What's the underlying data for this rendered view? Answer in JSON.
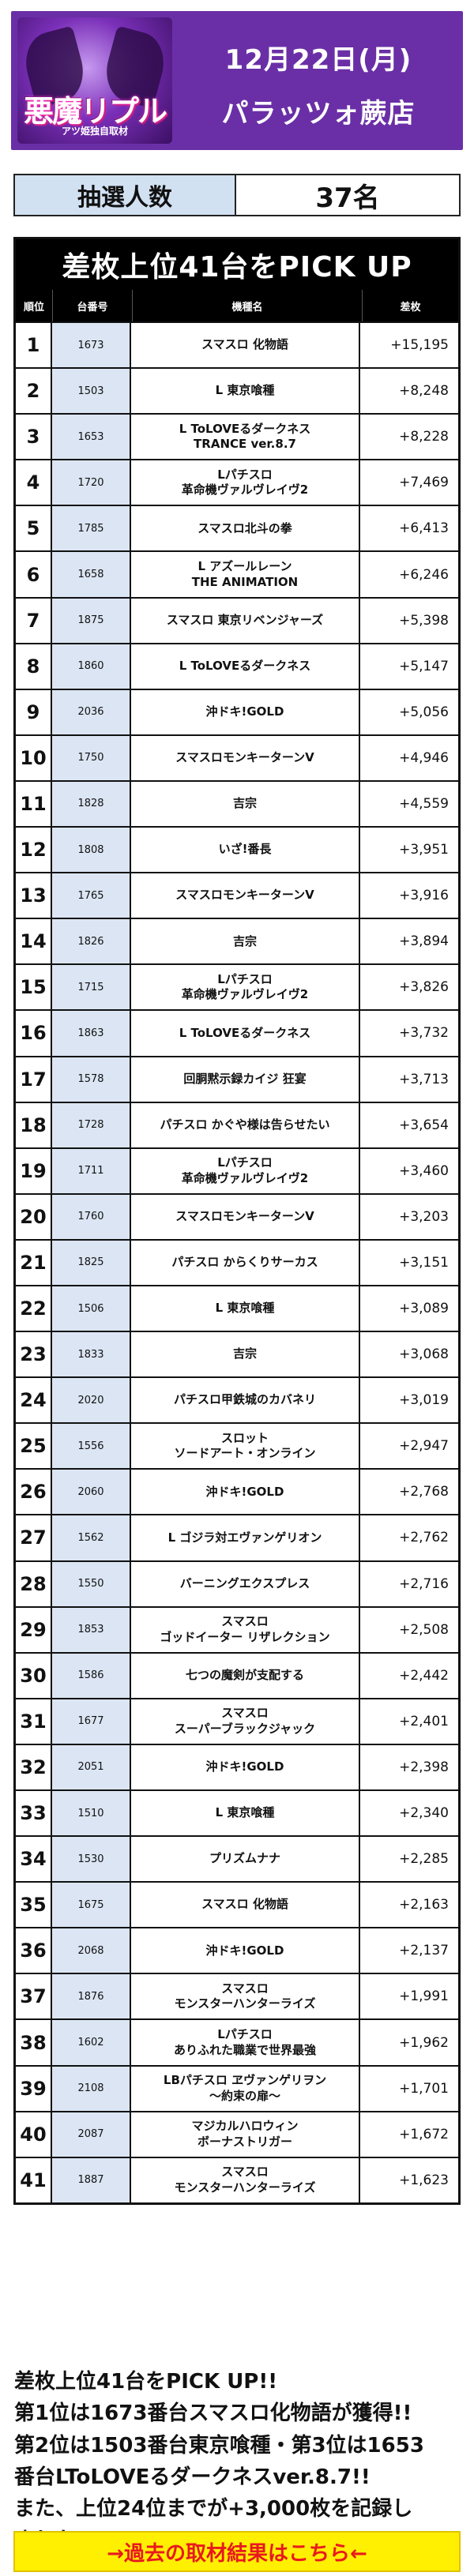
{
  "header": {
    "logo_text": "悪魔リプル",
    "logo_sub": "アツ姫独自取材",
    "date": "12月22日(月)",
    "store": "パラッツォ蕨店"
  },
  "lottery": {
    "label": "抽選人数",
    "value": "37名"
  },
  "table": {
    "title": "差枚上位41台をPICK UP",
    "columns": [
      "順位",
      "台番号",
      "機種名",
      "差枚"
    ],
    "rows": [
      {
        "rank": "1",
        "number": "1673",
        "name": "スマスロ 化物語",
        "diff": "+15,195"
      },
      {
        "rank": "2",
        "number": "1503",
        "name": "L 東京喰種",
        "diff": "+8,248"
      },
      {
        "rank": "3",
        "number": "1653",
        "name": "L ToLOVEるダークネス\nTRANCE ver.8.7",
        "diff": "+8,228"
      },
      {
        "rank": "4",
        "number": "1720",
        "name": "Lパチスロ\n革命機ヴァルヴレイヴ2",
        "diff": "+7,469"
      },
      {
        "rank": "5",
        "number": "1785",
        "name": "スマスロ北斗の拳",
        "diff": "+6,413"
      },
      {
        "rank": "6",
        "number": "1658",
        "name": "L アズールレーン\nTHE ANIMATION",
        "diff": "+6,246"
      },
      {
        "rank": "7",
        "number": "1875",
        "name": "スマスロ 東京リベンジャーズ",
        "diff": "+5,398"
      },
      {
        "rank": "8",
        "number": "1860",
        "name": "L ToLOVEるダークネス",
        "diff": "+5,147"
      },
      {
        "rank": "9",
        "number": "2036",
        "name": "沖ドキ!GOLD",
        "diff": "+5,056"
      },
      {
        "rank": "10",
        "number": "1750",
        "name": "スマスロモンキーターンV",
        "diff": "+4,946"
      },
      {
        "rank": "11",
        "number": "1828",
        "name": "吉宗",
        "diff": "+4,559"
      },
      {
        "rank": "12",
        "number": "1808",
        "name": "いざ!番長",
        "diff": "+3,951"
      },
      {
        "rank": "13",
        "number": "1765",
        "name": "スマスロモンキーターンV",
        "diff": "+3,916"
      },
      {
        "rank": "14",
        "number": "1826",
        "name": "吉宗",
        "diff": "+3,894"
      },
      {
        "rank": "15",
        "number": "1715",
        "name": "Lパチスロ\n革命機ヴァルヴレイヴ2",
        "diff": "+3,826"
      },
      {
        "rank": "16",
        "number": "1863",
        "name": "L ToLOVEるダークネス",
        "diff": "+3,732"
      },
      {
        "rank": "17",
        "number": "1578",
        "name": "回胴黙示録カイジ 狂宴",
        "diff": "+3,713"
      },
      {
        "rank": "18",
        "number": "1728",
        "name": "パチスロ かぐや様は告らせたい",
        "diff": "+3,654"
      },
      {
        "rank": "19",
        "number": "1711",
        "name": "Lパチスロ\n革命機ヴァルヴレイヴ2",
        "diff": "+3,460"
      },
      {
        "rank": "20",
        "number": "1760",
        "name": "スマスロモンキーターンV",
        "diff": "+3,203"
      },
      {
        "rank": "21",
        "number": "1825",
        "name": "パチスロ からくりサーカス",
        "diff": "+3,151"
      },
      {
        "rank": "22",
        "number": "1506",
        "name": "L 東京喰種",
        "diff": "+3,089"
      },
      {
        "rank": "23",
        "number": "1833",
        "name": "吉宗",
        "diff": "+3,068"
      },
      {
        "rank": "24",
        "number": "2020",
        "name": "パチスロ甲鉄城のカバネリ",
        "diff": "+3,019"
      },
      {
        "rank": "25",
        "number": "1556",
        "name": "スロット\nソードアート・オンライン",
        "diff": "+2,947"
      },
      {
        "rank": "26",
        "number": "2060",
        "name": "沖ドキ!GOLD",
        "diff": "+2,768"
      },
      {
        "rank": "27",
        "number": "1562",
        "name": "L ゴジラ対エヴァンゲリオン",
        "diff": "+2,762"
      },
      {
        "rank": "28",
        "number": "1550",
        "name": "バーニングエクスプレス",
        "diff": "+2,716"
      },
      {
        "rank": "29",
        "number": "1853",
        "name": "スマスロ\nゴッドイーター リザレクション",
        "diff": "+2,508"
      },
      {
        "rank": "30",
        "number": "1586",
        "name": "七つの魔剣が支配する",
        "diff": "+2,442"
      },
      {
        "rank": "31",
        "number": "1677",
        "name": "スマスロ\nスーパーブラックジャック",
        "diff": "+2,401"
      },
      {
        "rank": "32",
        "number": "2051",
        "name": "沖ドキ!GOLD",
        "diff": "+2,398"
      },
      {
        "rank": "33",
        "number": "1510",
        "name": "L 東京喰種",
        "diff": "+2,340"
      },
      {
        "rank": "34",
        "number": "1530",
        "name": "プリズムナナ",
        "diff": "+2,285"
      },
      {
        "rank": "35",
        "number": "1675",
        "name": "スマスロ 化物語",
        "diff": "+2,163"
      },
      {
        "rank": "36",
        "number": "2068",
        "name": "沖ドキ!GOLD",
        "diff": "+2,137"
      },
      {
        "rank": "37",
        "number": "1876",
        "name": "スマスロ\nモンスターハンターライズ",
        "diff": "+1,991"
      },
      {
        "rank": "38",
        "number": "1602",
        "name": "Lパチスロ\nありふれた職業で世界最強",
        "diff": "+1,962"
      },
      {
        "rank": "39",
        "number": "2108",
        "name": "LBパチスロ ヱヴァンゲリヲン\n〜約束の扉〜",
        "diff": "+1,701"
      },
      {
        "rank": "40",
        "number": "2087",
        "name": "マジカルハロウィン\nボーナストリガー",
        "diff": "+1,672"
      },
      {
        "rank": "41",
        "number": "1887",
        "name": "スマスロ\nモンスターハンターライズ",
        "diff": "+1,623"
      }
    ]
  },
  "summary": {
    "lines": [
      "差枚上位41台をPICK UP!!",
      "第1位は1673番台スマスロ化物語が獲得!!",
      "第2位は1503番台東京喰種・第3位は1653",
      "番台LToLOVEるダークネスver.8.7!!",
      "また、上位24位までが+3,000枚を記録し",
      "ました!!"
    ]
  },
  "banner": {
    "label": "→過去の取材結果はこちら←"
  },
  "colors": {
    "header_bg": "#6a2fa6",
    "label_bg": "#d2e1f2",
    "num_bg": "#dbe5f3",
    "banner_bg": "#ffef00",
    "banner_text": "#e8191f"
  }
}
